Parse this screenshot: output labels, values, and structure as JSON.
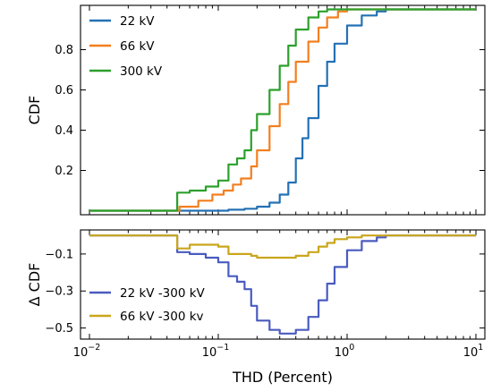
{
  "chart_data": [
    {
      "type": "line",
      "panel": "top",
      "xscale": "log",
      "xlim": [
        0.01,
        10
      ],
      "ylim": [
        -0.02,
        1.02
      ],
      "yticks": [
        "0.2",
        "0.4",
        "0.6",
        "0.8"
      ],
      "ylabel": "CDF",
      "xlabel": "",
      "legend_placement": "top-left",
      "series": [
        {
          "name": "22 kV",
          "color": "#2471b4",
          "x": [
            0.01,
            0.04,
            0.08,
            0.12,
            0.16,
            0.2,
            0.25,
            0.3,
            0.35,
            0.4,
            0.45,
            0.5,
            0.6,
            0.7,
            0.8,
            1.0,
            1.3,
            1.7,
            2.0,
            3.0,
            10
          ],
          "y": [
            0.0,
            0.0,
            0.0,
            0.005,
            0.01,
            0.02,
            0.04,
            0.08,
            0.14,
            0.26,
            0.36,
            0.46,
            0.62,
            0.74,
            0.83,
            0.92,
            0.97,
            0.99,
            1.0,
            1.0,
            1.0
          ]
        },
        {
          "name": "66 kV",
          "color": "#f37f1f",
          "x": [
            0.01,
            0.045,
            0.05,
            0.07,
            0.09,
            0.11,
            0.13,
            0.15,
            0.18,
            0.2,
            0.25,
            0.3,
            0.35,
            0.4,
            0.5,
            0.6,
            0.7,
            0.85,
            1.0,
            1.5,
            10
          ],
          "y": [
            0.0,
            0.0,
            0.02,
            0.05,
            0.08,
            0.1,
            0.13,
            0.16,
            0.22,
            0.3,
            0.42,
            0.53,
            0.64,
            0.74,
            0.84,
            0.91,
            0.96,
            0.99,
            1.0,
            1.0,
            1.0
          ]
        },
        {
          "name": "300 kV",
          "color": "#2ca02c",
          "x": [
            0.01,
            0.045,
            0.048,
            0.06,
            0.08,
            0.1,
            0.12,
            0.14,
            0.16,
            0.18,
            0.2,
            0.25,
            0.3,
            0.35,
            0.4,
            0.5,
            0.6,
            0.7,
            0.8,
            10
          ],
          "y": [
            0.0,
            0.0,
            0.09,
            0.1,
            0.12,
            0.15,
            0.23,
            0.26,
            0.3,
            0.4,
            0.48,
            0.6,
            0.72,
            0.82,
            0.9,
            0.96,
            0.99,
            1.0,
            1.0,
            1.0
          ]
        }
      ]
    },
    {
      "type": "line",
      "panel": "bottom",
      "xscale": "log",
      "xlim": [
        0.01,
        10
      ],
      "ylim": [
        -0.56,
        0.03
      ],
      "yticks": [
        "-0.1",
        "-0.3",
        "-0.5"
      ],
      "ylabel": "Δ CDF",
      "xlabel": "THD (Percent)",
      "xticks": [
        {
          "base": "10",
          "exp": "−2",
          "value": 0.01
        },
        {
          "base": "10",
          "exp": "−1",
          "value": 0.1
        },
        {
          "base": "10",
          "exp": "0",
          "value": 1
        },
        {
          "base": "10",
          "exp": "1",
          "value": 10
        }
      ],
      "legend_placement": "bottom-left",
      "series": [
        {
          "name": "22 kV -300 kV",
          "color": "#4a5bbf",
          "x": [
            0.01,
            0.045,
            0.048,
            0.06,
            0.08,
            0.1,
            0.12,
            0.14,
            0.16,
            0.18,
            0.2,
            0.25,
            0.3,
            0.35,
            0.4,
            0.5,
            0.6,
            0.7,
            0.8,
            1.0,
            1.3,
            1.7,
            2.0,
            10
          ],
          "y": [
            0.0,
            0.0,
            -0.09,
            -0.1,
            -0.12,
            -0.145,
            -0.22,
            -0.25,
            -0.29,
            -0.38,
            -0.46,
            -0.51,
            -0.53,
            -0.53,
            -0.51,
            -0.44,
            -0.35,
            -0.26,
            -0.17,
            -0.08,
            -0.03,
            -0.01,
            0.0,
            0.0
          ]
        },
        {
          "name": "66 kV -300 kv",
          "color": "#c9a61c",
          "x": [
            0.01,
            0.045,
            0.048,
            0.06,
            0.08,
            0.1,
            0.12,
            0.15,
            0.18,
            0.2,
            0.25,
            0.3,
            0.35,
            0.4,
            0.5,
            0.6,
            0.7,
            0.8,
            1.0,
            1.3,
            2.0,
            10
          ],
          "y": [
            0.0,
            0.0,
            -0.07,
            -0.05,
            -0.05,
            -0.06,
            -0.1,
            -0.1,
            -0.11,
            -0.12,
            -0.12,
            -0.12,
            -0.12,
            -0.11,
            -0.09,
            -0.06,
            -0.04,
            -0.02,
            -0.01,
            0.0,
            0.0,
            0.0
          ]
        }
      ]
    }
  ]
}
